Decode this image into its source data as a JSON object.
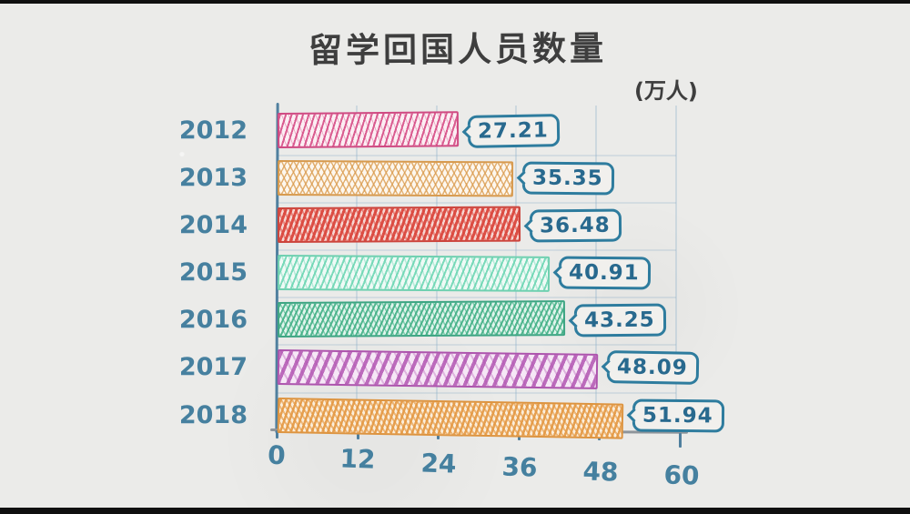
{
  "window": {
    "letterbox_color": "#101010",
    "paper_color": "#ebebe9"
  },
  "chart_data": {
    "type": "bar",
    "orientation": "horizontal",
    "title": "留学回国人员数量",
    "unit_label": "(万人)",
    "categories": [
      "2012",
      "2013",
      "2014",
      "2015",
      "2016",
      "2017",
      "2018"
    ],
    "values": [
      27.21,
      35.35,
      36.48,
      40.91,
      43.25,
      48.09,
      51.94
    ],
    "value_labels": [
      "27.21",
      "35.35",
      "36.48",
      "40.91",
      "43.25",
      "48.09",
      "51.94"
    ],
    "x_ticks": [
      "0",
      "12",
      "24",
      "36",
      "48",
      "60"
    ],
    "x_tick_values": [
      0,
      12,
      24,
      36,
      48,
      60
    ],
    "xlim": [
      0,
      60
    ],
    "grid": true,
    "legend": "none",
    "bar_colors": [
      "#cf4a82",
      "#d79a4e",
      "#cc443c",
      "#6fd0b0",
      "#3da583",
      "#ad54ad",
      "#dd9440"
    ],
    "bar_style": "hand-drawn-hatched",
    "axis_color": "#50809f",
    "baseline_color": "#8e959b",
    "tick_label_color": "#45809f",
    "category_label_color": "#46809f",
    "value_bubble_border_color": "#2e7c9e",
    "value_bubble_text_color": "#28698e",
    "title_color": "#3e3e3e"
  }
}
